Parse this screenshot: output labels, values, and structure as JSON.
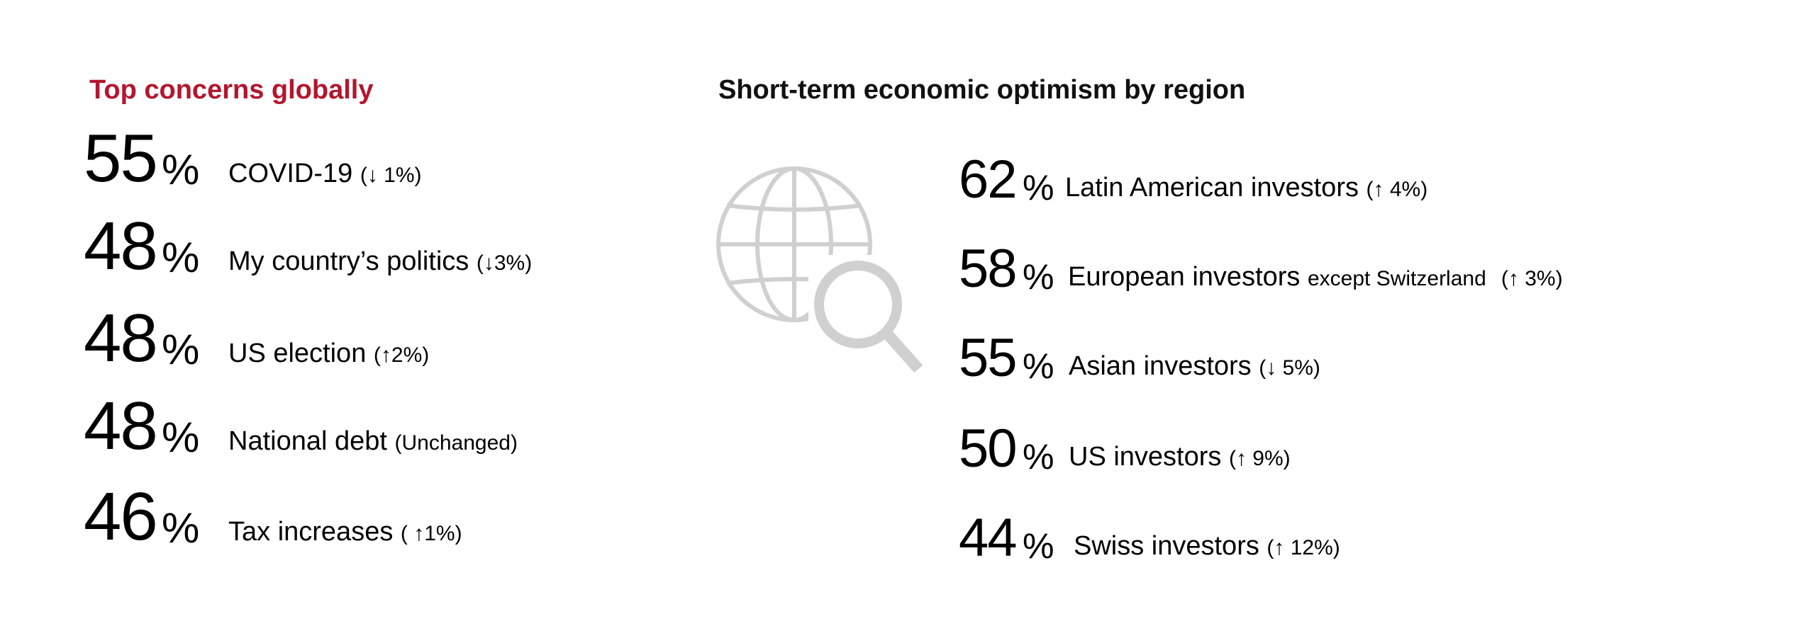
{
  "left": {
    "title": "Top concerns globally",
    "items": [
      {
        "value": "55",
        "unit": "%",
        "label": "COVID-19",
        "change": "(↓ 1%)"
      },
      {
        "value": "48",
        "unit": "%",
        "label": "My country’s politics",
        "change": "(↓3%)"
      },
      {
        "value": "48",
        "unit": "%",
        "label": "US election",
        "change": "(↑2%)"
      },
      {
        "value": "48",
        "unit": "%",
        "label": "National debt",
        "change": "(Unchanged)"
      },
      {
        "value": "46",
        "unit": "%",
        "label": "Tax increases",
        "change": "( ↑1%)"
      }
    ]
  },
  "right": {
    "title": "Short-term economic optimism by region",
    "icon": "globe-search-icon",
    "items": [
      {
        "value": "62",
        "unit": "%",
        "label": "Latin American investors",
        "small": "",
        "change": "(↑ 4%)"
      },
      {
        "value": "58",
        "unit": "%",
        "label": "European investors",
        "small": "except Switzerland",
        "change": "(↑ 3%)"
      },
      {
        "value": "55",
        "unit": "%",
        "label": "Asian investors",
        "small": "",
        "change": "(↓ 5%)"
      },
      {
        "value": "50",
        "unit": "%",
        "label": "US investors",
        "small": "",
        "change": "(↑ 9%)"
      },
      {
        "value": "44",
        "unit": "%",
        "label": "Swiss investors",
        "small": "",
        "change": "(↑ 12%)"
      }
    ]
  },
  "colors": {
    "accent": "#b3162e",
    "icon": "#d0d0d0",
    "text": "#000000"
  }
}
